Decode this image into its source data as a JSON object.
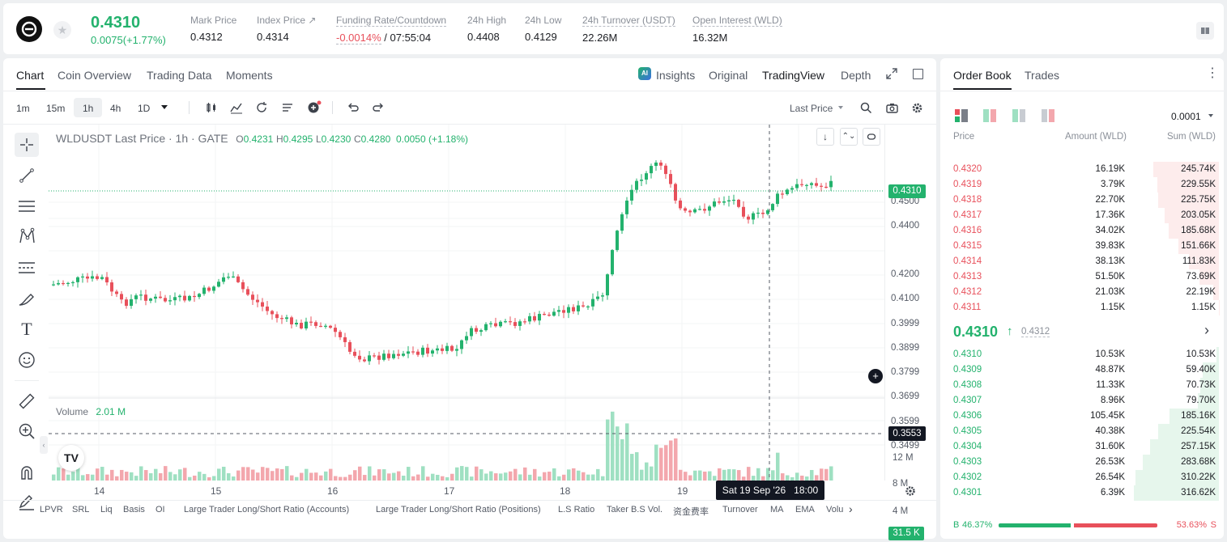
{
  "header": {
    "last_price": "0.4310",
    "change": "0.0075(+1.77%)",
    "stats": [
      {
        "label": "Mark Price",
        "value": "0.4312"
      },
      {
        "label": "Index Price ↗",
        "value": "0.4314"
      },
      {
        "label": "Funding Rate/Countdown",
        "value_red": "-0.0014%",
        "value": "/ 07:55:04"
      },
      {
        "label": "24h High",
        "value": "0.4408"
      },
      {
        "label": "24h Low",
        "value": "0.4129"
      },
      {
        "label": "24h Turnover (USDT)",
        "value": "22.26M"
      },
      {
        "label": "Open Interest (WLD)",
        "value": "16.32M"
      }
    ]
  },
  "chart_tabs": [
    "Chart",
    "Coin Overview",
    "Trading Data",
    "Moments"
  ],
  "view_tabs": {
    "insights": "Insights",
    "original": "Original",
    "tradingview": "TradingView",
    "depth": "Depth"
  },
  "intervals": [
    "1m",
    "15m",
    "1h",
    "4h",
    "1D"
  ],
  "price_type": "Last Price",
  "legend": {
    "symbol": "WLDUSDT Last Price · 1h · GATE",
    "o_label": "O",
    "o": "0.4231",
    "h_label": "H",
    "h": "0.4295",
    "l_label": "L",
    "l": "0.4230",
    "c_label": "C",
    "c": "0.4280",
    "chg": "0.0050 (+1.18%)"
  },
  "volume": {
    "label": "Volume",
    "value": "2.01 M",
    "ticks": [
      "12 M",
      "8 M",
      "4 M"
    ],
    "last": "31.5 K"
  },
  "price_axis": {
    "ticks": [
      "0.4500",
      "0.4400",
      "0.4200",
      "0.4100",
      "0.3999",
      "0.3899",
      "0.3799",
      "0.3699",
      "0.3599",
      "0.3499"
    ],
    "last": "0.4310",
    "crosshair": "0.3553"
  },
  "time_axis": {
    "ticks": [
      "14",
      "15",
      "16",
      "17",
      "18",
      "19"
    ],
    "crosshair_label": "Sat 19 Sep '26   18:00"
  },
  "indicators": [
    "LPVR",
    "SRL",
    "Liq",
    "Basis",
    "OI",
    "Large Trader Long/Short Ratio (Accounts)",
    "Large Trader Long/Short Ratio (Positions)",
    "L.S Ratio",
    "Taker B.S Vol.",
    "资金费率",
    "Turnover",
    "MA",
    "EMA",
    "Volu"
  ],
  "orderbook": {
    "tabs": [
      "Order Book",
      "Trades"
    ],
    "precision": "0.0001",
    "headers": {
      "price": "Price",
      "amount": "Amount (WLD)",
      "sum": "Sum (WLD)"
    },
    "asks": [
      {
        "p": "0.4320",
        "a": "16.19K",
        "s": "245.74K",
        "depth": 0.776
      },
      {
        "p": "0.4319",
        "a": "3.79K",
        "s": "229.55K",
        "depth": 0.725
      },
      {
        "p": "0.4318",
        "a": "22.70K",
        "s": "225.75K",
        "depth": 0.713
      },
      {
        "p": "0.4317",
        "a": "17.36K",
        "s": "203.05K",
        "depth": 0.641
      },
      {
        "p": "0.4316",
        "a": "34.02K",
        "s": "185.68K",
        "depth": 0.586
      },
      {
        "p": "0.4315",
        "a": "39.83K",
        "s": "151.66K",
        "depth": 0.479
      },
      {
        "p": "0.4314",
        "a": "38.13K",
        "s": "111.83K",
        "depth": 0.353
      },
      {
        "p": "0.4313",
        "a": "51.50K",
        "s": "73.69K",
        "depth": 0.233
      },
      {
        "p": "0.4312",
        "a": "21.03K",
        "s": "22.19K",
        "depth": 0.07
      },
      {
        "p": "0.4311",
        "a": "1.15K",
        "s": "1.15K",
        "depth": 0.004
      }
    ],
    "mid_price": "0.4310",
    "mark": "0.4312",
    "bids": [
      {
        "p": "0.4310",
        "a": "10.53K",
        "s": "10.53K",
        "depth": 0.033
      },
      {
        "p": "0.4309",
        "a": "48.87K",
        "s": "59.40K",
        "depth": 0.188
      },
      {
        "p": "0.4308",
        "a": "11.33K",
        "s": "70.73K",
        "depth": 0.223
      },
      {
        "p": "0.4307",
        "a": "8.96K",
        "s": "79.70K",
        "depth": 0.252
      },
      {
        "p": "0.4306",
        "a": "105.45K",
        "s": "185.16K",
        "depth": 0.585
      },
      {
        "p": "0.4305",
        "a": "40.38K",
        "s": "225.54K",
        "depth": 0.712
      },
      {
        "p": "0.4304",
        "a": "31.60K",
        "s": "257.15K",
        "depth": 0.812
      },
      {
        "p": "0.4303",
        "a": "26.53K",
        "s": "283.68K",
        "depth": 0.896
      },
      {
        "p": "0.4302",
        "a": "26.54K",
        "s": "310.22K",
        "depth": 0.98
      },
      {
        "p": "0.4301",
        "a": "6.39K",
        "s": "316.62K",
        "depth": 1.0
      }
    ],
    "buy_ratio": "46.37%",
    "sell_ratio": "53.63%",
    "buy_label": "B",
    "sell_label": "S",
    "buy_fraction": 0.4637
  },
  "colors": {
    "up": "#23b26d",
    "down": "#e8505b",
    "up_vol": "#9fe0c2",
    "down_vol": "#f3a7ad"
  }
}
